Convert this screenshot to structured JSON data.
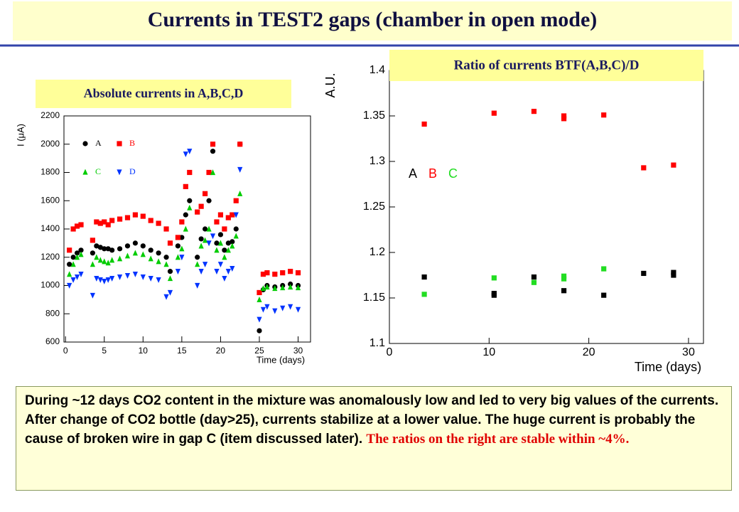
{
  "title": "Currents in TEST2 gaps (chamber in open mode)",
  "caption": {
    "text": "During ~12 days CO2 content in the mixture was anomalously low and led to very big values of the currents. After change of CO2 bottle (day>25), currents stabilize at a lower value. The huge current is probably the cause of broken wire in gap C (item discussed later).",
    "highlight": "The ratios on the right are stable within ~4%."
  },
  "chart_data": [
    {
      "type": "scatter",
      "title": "Absolute currents in A,B,C,D",
      "x_label": "Time (days)",
      "y_label": "I (μA)",
      "xlim": [
        -0.2,
        31.6
      ],
      "ylim": [
        600,
        2200
      ],
      "xticks": [
        0,
        5,
        10,
        15,
        20,
        25,
        30
      ],
      "yticks": [
        600,
        800,
        1000,
        1200,
        1400,
        1600,
        1800,
        2000,
        2200
      ],
      "x": [
        0.5,
        1,
        1.5,
        2,
        3.5,
        4,
        4.5,
        5,
        5.5,
        6,
        7,
        8,
        9,
        10,
        11,
        12,
        13,
        13.5,
        14.5,
        15,
        15.5,
        16,
        17,
        17.5,
        18,
        18.5,
        19,
        19.5,
        20,
        20.5,
        21,
        21.5,
        22,
        22.5,
        25,
        25.5,
        26,
        27,
        28,
        29,
        30
      ],
      "series": [
        {
          "name": "A",
          "color": "#000000",
          "marker": "circle",
          "values": [
            1150,
            1200,
            1230,
            1250,
            1230,
            1280,
            1270,
            1260,
            1260,
            1250,
            1260,
            1280,
            1300,
            1280,
            1250,
            1230,
            1200,
            1100,
            1280,
            1340,
            1500,
            1600,
            1200,
            1330,
            1400,
            1600,
            1950,
            1300,
            1360,
            1250,
            1300,
            1310,
            1400,
            2000,
            680,
            970,
            1000,
            990,
            1000,
            1010,
            1000
          ]
        },
        {
          "name": "B",
          "color": "#ff0000",
          "marker": "square",
          "values": [
            1250,
            1400,
            1420,
            1430,
            1320,
            1450,
            1440,
            1450,
            1430,
            1460,
            1470,
            1480,
            1500,
            1490,
            1460,
            1440,
            1400,
            1300,
            1340,
            1450,
            1700,
            1800,
            1520,
            1560,
            1650,
            1800,
            2000,
            1450,
            1500,
            1400,
            1480,
            1500,
            1600,
            2000,
            950,
            1080,
            1090,
            1080,
            1090,
            1100,
            1090
          ]
        },
        {
          "name": "C",
          "color": "#00cc00",
          "marker": "triangle",
          "values": [
            1080,
            1150,
            1200,
            1220,
            1150,
            1200,
            1180,
            1170,
            1160,
            1180,
            1190,
            1210,
            1230,
            1220,
            1190,
            1170,
            1150,
            1050,
            1200,
            1260,
            1400,
            1550,
            1150,
            1280,
            1320,
            1400,
            1800,
            1250,
            1300,
            1200,
            1250,
            1280,
            1350,
            1650,
            900,
            980,
            990,
            980,
            985,
            990,
            985
          ]
        },
        {
          "name": "D",
          "color": "#0033ff",
          "marker": "triangle-down",
          "values": [
            1000,
            1040,
            1060,
            1080,
            930,
            1050,
            1040,
            1030,
            1040,
            1050,
            1060,
            1070,
            1080,
            1060,
            1050,
            1040,
            920,
            950,
            1100,
            1200,
            1930,
            1950,
            1000,
            1100,
            1150,
            1300,
            1350,
            1100,
            1150,
            1050,
            1100,
            1120,
            1500,
            1820,
            760,
            830,
            850,
            820,
            840,
            850,
            830
          ]
        }
      ]
    },
    {
      "type": "scatter",
      "title": "Ratio of currents BTF(A,B,C)/D",
      "x_label": "Time (days)",
      "y_label": "A.U.",
      "xlim": [
        0,
        31.5
      ],
      "ylim": [
        1.1,
        1.4
      ],
      "xticks": [
        0,
        10,
        20,
        30
      ],
      "yticks": [
        1.1,
        1.15,
        1.2,
        1.25,
        1.3,
        1.35,
        1.4
      ],
      "series": [
        {
          "name": "A",
          "color": "#000000",
          "marker": "square",
          "x": [
            3.5,
            10.5,
            10.5,
            14.5,
            17.5,
            21.5,
            25.5,
            28.5,
            28.5
          ],
          "values": [
            1.173,
            1.155,
            1.153,
            1.173,
            1.158,
            1.153,
            1.177,
            1.178,
            1.175
          ]
        },
        {
          "name": "B",
          "color": "#ff0000",
          "marker": "square",
          "x": [
            3.5,
            10.5,
            14.5,
            17.5,
            17.5,
            21.5,
            25.5,
            28.5
          ],
          "values": [
            1.341,
            1.353,
            1.355,
            1.35,
            1.347,
            1.351,
            1.293,
            1.296
          ]
        },
        {
          "name": "C",
          "color": "#22dd22",
          "marker": "square",
          "x": [
            3.5,
            10.5,
            14.5,
            17.5,
            17.5,
            21.5
          ],
          "values": [
            1.154,
            1.172,
            1.167,
            1.174,
            1.171,
            1.182
          ]
        }
      ]
    }
  ]
}
